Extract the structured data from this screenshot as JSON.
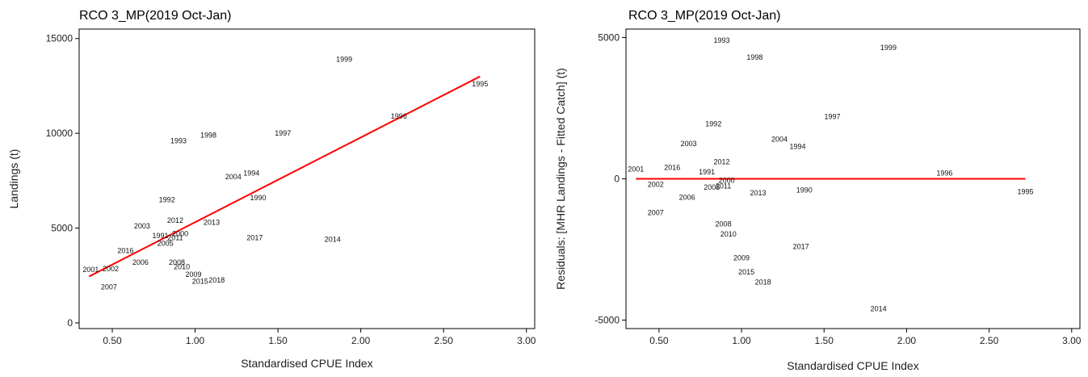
{
  "colors": {
    "fit_line": "#ff0000",
    "text": "#111111",
    "frame": "#000000"
  },
  "chart_data": [
    {
      "type": "scatter",
      "title": "RCO 3_MP(2019 Oct-Jan)",
      "xlabel": "Standardised CPUE Index",
      "ylabel": "Landings (t)",
      "xlim": [
        0.3,
        3.05
      ],
      "ylim": [
        -300,
        15500
      ],
      "xticks": [
        0.5,
        1.0,
        1.5,
        2.0,
        2.5,
        3.0
      ],
      "xtick_labels": [
        "0.50",
        "1.00",
        "1.50",
        "2.00",
        "2.50",
        "3.00"
      ],
      "yticks": [
        0,
        5000,
        10000,
        15000
      ],
      "ytick_labels": [
        "0",
        "5000",
        "10000",
        "15000"
      ],
      "grid": false,
      "points": [
        {
          "label": "1999",
          "x": 1.9,
          "y": 13900
        },
        {
          "label": "1995",
          "x": 2.72,
          "y": 12600
        },
        {
          "label": "1996",
          "x": 2.23,
          "y": 10900
        },
        {
          "label": "1993",
          "x": 0.9,
          "y": 9600
        },
        {
          "label": "1998",
          "x": 1.08,
          "y": 9900
        },
        {
          "label": "1997",
          "x": 1.53,
          "y": 10000
        },
        {
          "label": "2004",
          "x": 1.23,
          "y": 7700
        },
        {
          "label": "1994",
          "x": 1.34,
          "y": 7900
        },
        {
          "label": "1990",
          "x": 1.38,
          "y": 6600
        },
        {
          "label": "1992",
          "x": 0.83,
          "y": 6500
        },
        {
          "label": "2012",
          "x": 0.88,
          "y": 5400
        },
        {
          "label": "2013",
          "x": 1.1,
          "y": 5300
        },
        {
          "label": "2003",
          "x": 0.68,
          "y": 5100
        },
        {
          "label": "2000",
          "x": 0.91,
          "y": 4700
        },
        {
          "label": "1991",
          "x": 0.79,
          "y": 4600
        },
        {
          "label": "2011",
          "x": 0.88,
          "y": 4500
        },
        {
          "label": "2017",
          "x": 1.36,
          "y": 4500
        },
        {
          "label": "2014",
          "x": 1.83,
          "y": 4400
        },
        {
          "label": "2005",
          "x": 0.82,
          "y": 4200
        },
        {
          "label": "2016",
          "x": 0.58,
          "y": 3800
        },
        {
          "label": "2006",
          "x": 0.67,
          "y": 3200
        },
        {
          "label": "2008",
          "x": 0.89,
          "y": 3200
        },
        {
          "label": "2010",
          "x": 0.92,
          "y": 2950
        },
        {
          "label": "2001",
          "x": 0.37,
          "y": 2800
        },
        {
          "label": "2002",
          "x": 0.49,
          "y": 2850
        },
        {
          "label": "2009",
          "x": 0.99,
          "y": 2550
        },
        {
          "label": "2015",
          "x": 1.03,
          "y": 2200
        },
        {
          "label": "2018",
          "x": 1.13,
          "y": 2250
        },
        {
          "label": "2007",
          "x": 0.48,
          "y": 1900
        }
      ],
      "fit_line": {
        "x": [
          0.36,
          2.72
        ],
        "y": [
          2450,
          13000
        ]
      }
    },
    {
      "type": "scatter",
      "title": "RCO 3_MP(2019 Oct-Jan)",
      "xlabel": "Standardised CPUE Index",
      "ylabel": "Residuals: [MHR Landings - Fitted Catch] (t)",
      "xlim": [
        0.3,
        3.05
      ],
      "ylim": [
        -5300,
        5300
      ],
      "xticks": [
        0.5,
        1.0,
        1.5,
        2.0,
        2.5,
        3.0
      ],
      "xtick_labels": [
        "0.50",
        "1.00",
        "1.50",
        "2.00",
        "2.50",
        "3.00"
      ],
      "yticks": [
        -5000,
        0,
        5000
      ],
      "ytick_labels": [
        "-5000",
        "0",
        "5000"
      ],
      "grid": false,
      "points": [
        {
          "label": "1993",
          "x": 0.88,
          "y": 4900
        },
        {
          "label": "1999",
          "x": 1.89,
          "y": 4650
        },
        {
          "label": "1998",
          "x": 1.08,
          "y": 4300
        },
        {
          "label": "1997",
          "x": 1.55,
          "y": 2200
        },
        {
          "label": "1992",
          "x": 0.83,
          "y": 1950
        },
        {
          "label": "2004",
          "x": 1.23,
          "y": 1400
        },
        {
          "label": "1994",
          "x": 1.34,
          "y": 1150
        },
        {
          "label": "2003",
          "x": 0.68,
          "y": 1250
        },
        {
          "label": "2012",
          "x": 0.88,
          "y": 600
        },
        {
          "label": "2001",
          "x": 0.36,
          "y": 350
        },
        {
          "label": "2016",
          "x": 0.58,
          "y": 400
        },
        {
          "label": "1991",
          "x": 0.79,
          "y": 250
        },
        {
          "label": "1996",
          "x": 2.23,
          "y": 200
        },
        {
          "label": "2000",
          "x": 0.91,
          "y": -50
        },
        {
          "label": "2002",
          "x": 0.48,
          "y": -200
        },
        {
          "label": "2011",
          "x": 0.89,
          "y": -250
        },
        {
          "label": "2005",
          "x": 0.82,
          "y": -300
        },
        {
          "label": "1990",
          "x": 1.38,
          "y": -400
        },
        {
          "label": "2013",
          "x": 1.1,
          "y": -500
        },
        {
          "label": "1995",
          "x": 2.72,
          "y": -450
        },
        {
          "label": "2006",
          "x": 0.67,
          "y": -650
        },
        {
          "label": "2007",
          "x": 0.48,
          "y": -1200
        },
        {
          "label": "2008",
          "x": 0.89,
          "y": -1600
        },
        {
          "label": "2010",
          "x": 0.92,
          "y": -1950
        },
        {
          "label": "2017",
          "x": 1.36,
          "y": -2400
        },
        {
          "label": "2009",
          "x": 1.0,
          "y": -2800
        },
        {
          "label": "2015",
          "x": 1.03,
          "y": -3300
        },
        {
          "label": "2018",
          "x": 1.13,
          "y": -3650
        },
        {
          "label": "2014",
          "x": 1.83,
          "y": -4600
        }
      ],
      "fit_line": {
        "x": [
          0.36,
          2.72
        ],
        "y": [
          0,
          0
        ]
      }
    }
  ]
}
